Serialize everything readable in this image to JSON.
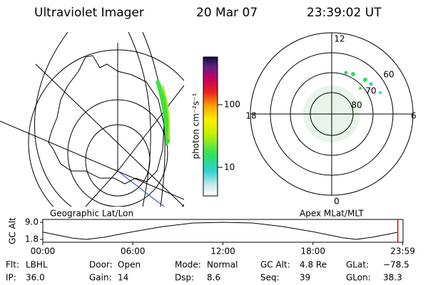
{
  "header": {
    "instrument": "Ultraviolet Imager",
    "date": "20 Mar 07",
    "time": "23:39:02 UT"
  },
  "map": {
    "label": "Geographic Lat/Lon"
  },
  "colorbar": {
    "label": "photon cm⁻²s⁻¹",
    "log": true,
    "ylim": [
      3.5,
      577
    ],
    "yticks": [
      10,
      100
    ]
  },
  "polar": {
    "label": "Apex MLat/MLT",
    "mlt_labels": [
      "12",
      "18",
      "6",
      "0"
    ],
    "lat_labels": [
      "60",
      "70",
      "80"
    ]
  },
  "chart_data": {
    "type": "line",
    "ylabel": "GC Alt",
    "x": [
      0,
      1,
      2,
      2.9,
      4,
      6,
      8,
      10,
      12,
      14,
      16,
      18,
      20,
      20.9,
      22,
      23.65
    ],
    "values": [
      4.9,
      3.6,
      2.3,
      1.8,
      2.6,
      5.0,
      7.2,
      8.7,
      9.0,
      8.7,
      7.2,
      5.0,
      2.5,
      1.8,
      2.8,
      4.8
    ],
    "xlim": [
      0,
      24
    ],
    "xticks": [
      {
        "value": 0,
        "label": "00:00"
      },
      {
        "value": 6,
        "label": "06:00"
      },
      {
        "value": 12,
        "label": "12:00"
      },
      {
        "value": 18,
        "label": "18:00"
      },
      {
        "value": 23.98,
        "label": "23:59"
      }
    ],
    "ylim": [
      1.8,
      9.0
    ],
    "yticks": [
      {
        "value": 9.0,
        "label": "9.0"
      },
      1.8
    ],
    "marker": 23.65,
    "color": "#000000",
    "marker_color": "#e00000"
  },
  "info": [
    {
      "label": "Flt:",
      "value": "LBHL"
    },
    {
      "label": "IP:",
      "value": "36.0"
    },
    {
      "label": "Door:",
      "value": "Open"
    },
    {
      "label": "Gain:",
      "value": "14"
    },
    {
      "label": "Mode:",
      "value": "Normal"
    },
    {
      "label": "Dsp:",
      "value": "8.6"
    },
    {
      "label": "GC Alt:",
      "value": "4.8 Re"
    },
    {
      "label": "Seq:",
      "value": "39"
    },
    {
      "label": "GLat:",
      "value": "−78.5"
    },
    {
      "label": "GLon:",
      "value": "38.3"
    }
  ]
}
